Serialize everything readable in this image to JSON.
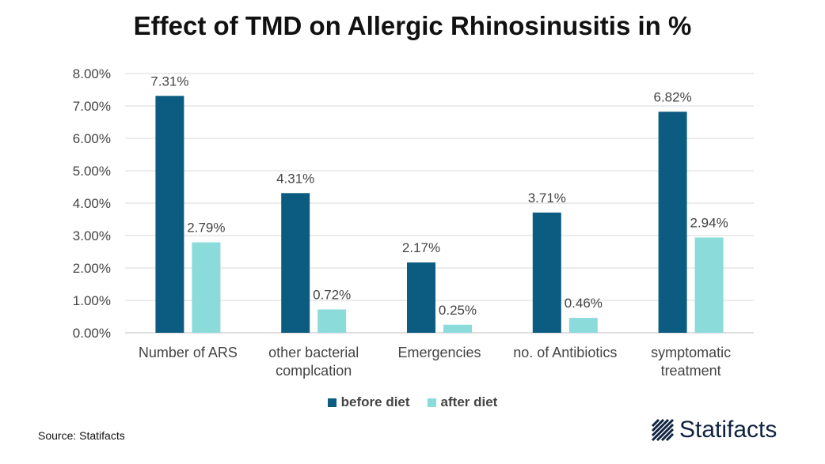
{
  "chart_data": {
    "type": "bar",
    "title": "Effect of TMD on Allergic Rhinosinusitis in %",
    "categories": [
      [
        "Number of ARS"
      ],
      [
        "other bacterial",
        "complcation"
      ],
      [
        "Emergencies"
      ],
      [
        "no. of Antibiotics"
      ],
      [
        "symptomatic",
        "treatment"
      ]
    ],
    "series": [
      {
        "name": "before diet",
        "color": "#0b5c80",
        "values": [
          7.31,
          4.31,
          2.17,
          3.71,
          6.82
        ],
        "labels": [
          "7.31%",
          "4.31%",
          "2.17%",
          "3.71%",
          "6.82%"
        ]
      },
      {
        "name": "after diet",
        "color": "#8adbd9",
        "values": [
          2.79,
          0.72,
          0.25,
          0.46,
          2.94
        ],
        "labels": [
          "2.79%",
          "0.72%",
          "0.25%",
          "0.46%",
          "2.94%"
        ]
      }
    ],
    "ylim": [
      0,
      8
    ],
    "yticks": [
      "0.00%",
      "1.00%",
      "2.00%",
      "3.00%",
      "4.00%",
      "5.00%",
      "6.00%",
      "7.00%",
      "8.00%"
    ],
    "grid": true,
    "legend_position": "bottom"
  },
  "footer": {
    "source": "Source: Statifacts",
    "brand": "Statifacts",
    "brand_color": "#0f2341"
  }
}
